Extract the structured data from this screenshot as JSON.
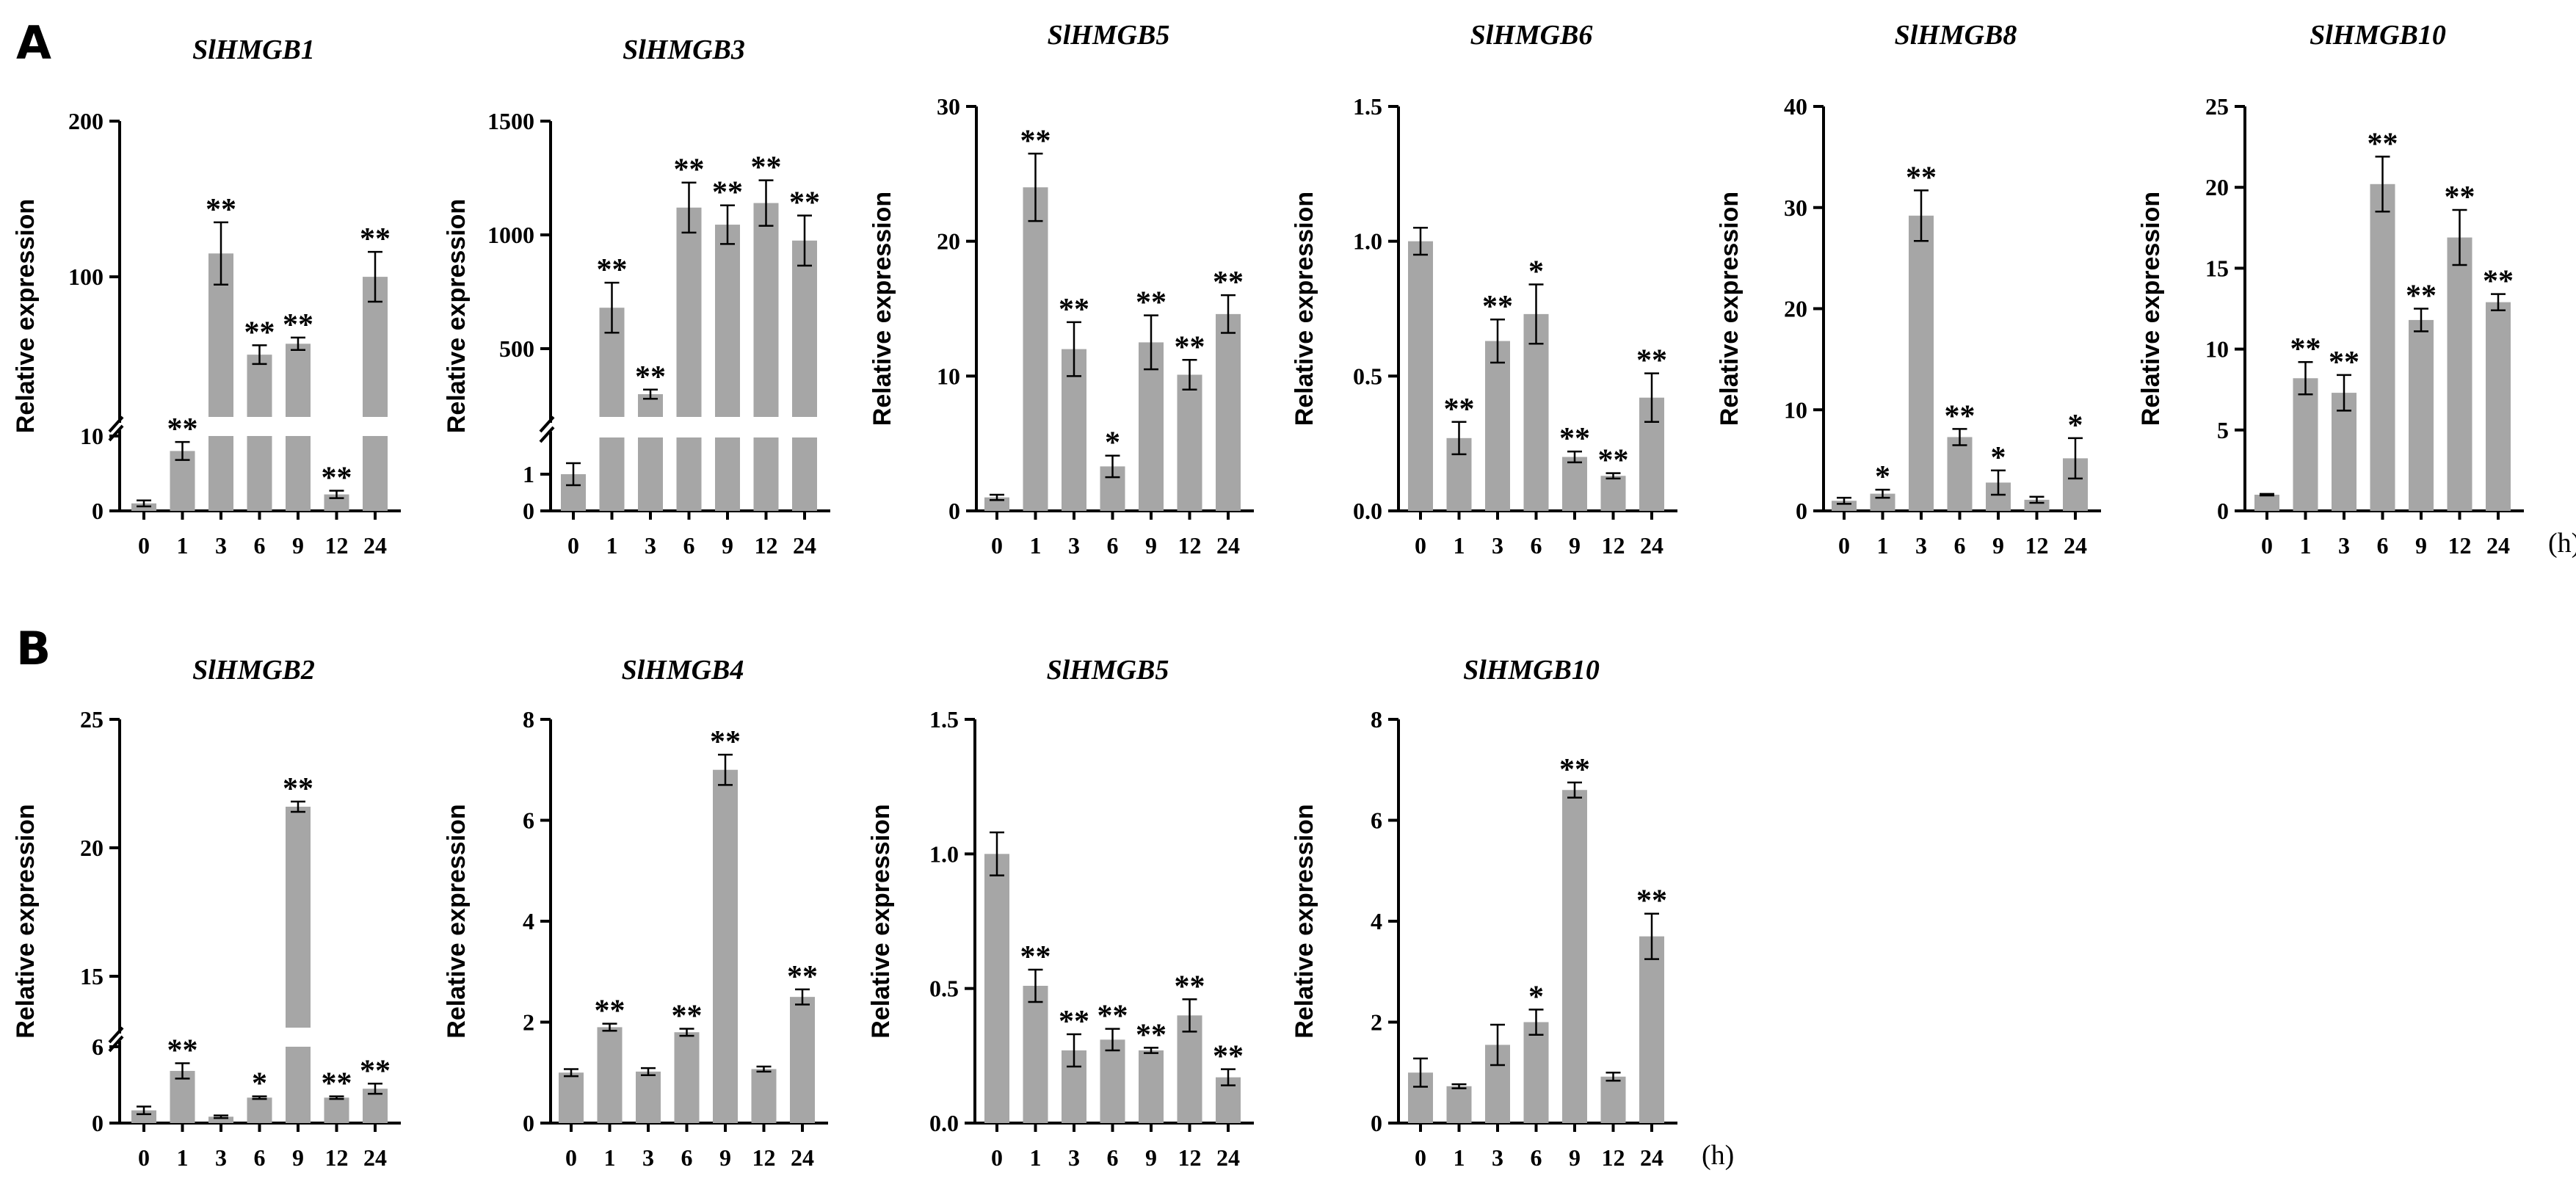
{
  "panels": [
    {
      "letter": "A"
    },
    {
      "letter": "B"
    }
  ],
  "x_unit": "(h)",
  "colors": {
    "bar": "#a6a6a6",
    "axis": "#000000"
  },
  "chart_data": [
    {
      "type": "bar",
      "panel": "A",
      "title": "SlHMGB1",
      "ylabel": "Relative expression",
      "categories": [
        "0",
        "1",
        "3",
        "6",
        "9",
        "12",
        "24"
      ],
      "values": [
        1,
        8,
        115,
        50,
        57,
        2.2,
        100
      ],
      "errors": [
        0.4,
        1.2,
        20,
        6,
        4,
        0.5,
        16
      ],
      "sig": [
        "",
        "**",
        "**",
        "**",
        "**",
        "**",
        "**"
      ],
      "axis_break": {
        "lower": [
          0,
          10
        ],
        "upper": [
          10,
          200
        ]
      },
      "yticks": [
        0,
        10,
        100,
        200
      ],
      "ytick_labels": [
        "0",
        "10",
        "100",
        "200"
      ]
    },
    {
      "type": "bar",
      "panel": "A",
      "title": "SlHMGB3",
      "ylabel": "Relative expression",
      "categories": [
        "0",
        "1",
        "3",
        "6",
        "9",
        "12",
        "24"
      ],
      "values": [
        1,
        680,
        300,
        1120,
        1045,
        1140,
        975
      ],
      "errors": [
        0.3,
        110,
        20,
        110,
        85,
        100,
        110
      ],
      "sig": [
        "",
        "**",
        "**",
        "**",
        "**",
        "**",
        "**"
      ],
      "axis_break": {
        "lower": [
          0,
          2
        ],
        "upper": [
          200,
          1500
        ]
      },
      "yticks": [
        0,
        1,
        500,
        1000,
        1500
      ],
      "ytick_labels": [
        "0",
        "1",
        "500",
        "1000",
        "1500"
      ]
    },
    {
      "type": "bar",
      "panel": "A",
      "title": "SlHMGB5",
      "ylabel": "Relative expression",
      "categories": [
        "0",
        "1",
        "3",
        "6",
        "9",
        "12",
        "24"
      ],
      "values": [
        1,
        24,
        12,
        3.3,
        12.5,
        10.1,
        14.6
      ],
      "errors": [
        0.2,
        2.5,
        2,
        0.8,
        2,
        1.1,
        1.4
      ],
      "sig": [
        "",
        "**",
        "**",
        "*",
        "**",
        "**",
        "**"
      ],
      "ylim": [
        0,
        30
      ],
      "yticks": [
        0,
        10,
        20,
        30
      ],
      "ytick_labels": [
        "0",
        "10",
        "20",
        "30"
      ]
    },
    {
      "type": "bar",
      "panel": "A",
      "title": "SlHMGB6",
      "ylabel": "Relative expression",
      "categories": [
        "0",
        "1",
        "3",
        "6",
        "9",
        "12",
        "24"
      ],
      "values": [
        1.0,
        0.27,
        0.63,
        0.73,
        0.2,
        0.13,
        0.42
      ],
      "errors": [
        0.05,
        0.06,
        0.08,
        0.11,
        0.02,
        0.01,
        0.09
      ],
      "sig": [
        "",
        "**",
        "**",
        "*",
        "**",
        "**",
        "**"
      ],
      "ylim": [
        0,
        1.5
      ],
      "yticks": [
        0,
        0.5,
        1.0,
        1.5
      ],
      "ytick_labels": [
        "0.0",
        "0.5",
        "1.0",
        "1.5"
      ]
    },
    {
      "type": "bar",
      "panel": "A",
      "title": "SlHMGB8",
      "ylabel": "Relative expression",
      "categories": [
        "0",
        "1",
        "3",
        "6",
        "9",
        "12",
        "24"
      ],
      "values": [
        1,
        1.7,
        29.2,
        7.3,
        2.8,
        1.1,
        5.2
      ],
      "errors": [
        0.3,
        0.4,
        2.5,
        0.8,
        1.2,
        0.3,
        2.0
      ],
      "sig": [
        "",
        "*",
        "**",
        "**",
        "*",
        "",
        "*"
      ],
      "ylim": [
        0,
        40
      ],
      "yticks": [
        0,
        10,
        20,
        30,
        40
      ],
      "ytick_labels": [
        "0",
        "10",
        "20",
        "30",
        "40"
      ]
    },
    {
      "type": "bar",
      "panel": "A",
      "title": "SlHMGB10",
      "ylabel": "Relative expression",
      "categories": [
        "0",
        "1",
        "3",
        "6",
        "9",
        "12",
        "24"
      ],
      "values": [
        1,
        8.2,
        7.3,
        20.2,
        11.8,
        16.9,
        12.9
      ],
      "errors": [
        0.05,
        1.0,
        1.1,
        1.7,
        0.7,
        1.7,
        0.5
      ],
      "sig": [
        "",
        "**",
        "**",
        "**",
        "**",
        "**",
        "**"
      ],
      "ylim": [
        0,
        25
      ],
      "yticks": [
        0,
        5,
        10,
        15,
        20,
        25
      ],
      "ytick_labels": [
        "0",
        "5",
        "10",
        "15",
        "20",
        "25"
      ]
    },
    {
      "type": "bar",
      "panel": "B",
      "title": "SlHMGB2",
      "ylabel": "Relative expression",
      "categories": [
        "0",
        "1",
        "3",
        "6",
        "9",
        "12",
        "24"
      ],
      "values": [
        1,
        4.1,
        0.5,
        2.0,
        21.6,
        2.0,
        2.7
      ],
      "errors": [
        0.3,
        0.6,
        0.1,
        0.1,
        0.2,
        0.1,
        0.4
      ],
      "sig": [
        "",
        "**",
        "",
        "*",
        "**",
        "**",
        "**"
      ],
      "axis_break": {
        "lower": [
          0,
          6
        ],
        "upper": [
          13,
          25
        ]
      },
      "yticks": [
        0,
        6,
        15,
        20,
        25
      ],
      "ytick_labels": [
        "0",
        "6",
        "15",
        "20",
        "25"
      ]
    },
    {
      "type": "bar",
      "panel": "B",
      "title": "SlHMGB4",
      "ylabel": "Relative expression",
      "categories": [
        "0",
        "1",
        "3",
        "6",
        "9",
        "12",
        "24"
      ],
      "values": [
        1.0,
        1.9,
        1.02,
        1.8,
        7.0,
        1.07,
        2.5
      ],
      "errors": [
        0.07,
        0.07,
        0.07,
        0.07,
        0.3,
        0.05,
        0.15
      ],
      "sig": [
        "",
        "**",
        "",
        "**",
        "**",
        "",
        "**"
      ],
      "ylim": [
        0,
        8
      ],
      "yticks": [
        0,
        2,
        4,
        6,
        8
      ],
      "ytick_labels": [
        "0",
        "2",
        "4",
        "6",
        "8"
      ]
    },
    {
      "type": "bar",
      "panel": "B",
      "title": "SlHMGB5",
      "ylabel": "Relative expression",
      "categories": [
        "0",
        "1",
        "3",
        "6",
        "9",
        "12",
        "24"
      ],
      "values": [
        1.0,
        0.51,
        0.27,
        0.31,
        0.27,
        0.4,
        0.17
      ],
      "errors": [
        0.08,
        0.06,
        0.06,
        0.04,
        0.01,
        0.06,
        0.03
      ],
      "sig": [
        "",
        "**",
        "**",
        "**",
        "**",
        "**",
        "**"
      ],
      "ylim": [
        0,
        1.5
      ],
      "yticks": [
        0,
        0.5,
        1.0,
        1.5
      ],
      "ytick_labels": [
        "0.0",
        "0.5",
        "1.0",
        "1.5"
      ]
    },
    {
      "type": "bar",
      "panel": "B",
      "title": "SlHMGB10",
      "ylabel": "Relative expression",
      "categories": [
        "0",
        "1",
        "3",
        "6",
        "9",
        "12",
        "24"
      ],
      "values": [
        1.0,
        0.73,
        1.55,
        2.0,
        6.6,
        0.92,
        3.7
      ],
      "errors": [
        0.28,
        0.04,
        0.4,
        0.25,
        0.15,
        0.08,
        0.45
      ],
      "sig": [
        "",
        "",
        "",
        "*",
        "**",
        "",
        "**"
      ],
      "ylim": [
        0,
        8
      ],
      "yticks": [
        0,
        2,
        4,
        6,
        8
      ],
      "ytick_labels": [
        "0",
        "2",
        "4",
        "6",
        "8"
      ]
    }
  ]
}
